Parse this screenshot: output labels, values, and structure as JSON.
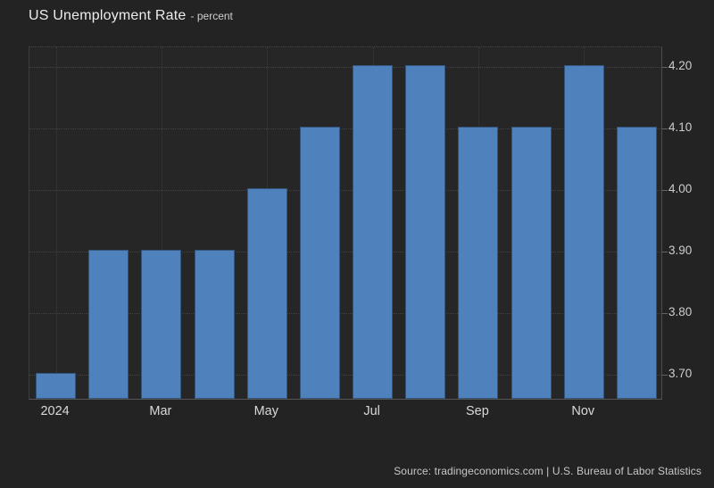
{
  "chart": {
    "title": "US Unemployment Rate",
    "subtitle": "- percent",
    "source": "Source: tradingeconomics.com | U.S. Bureau of Labor Statistics"
  },
  "chart_data": {
    "type": "bar",
    "title": "US Unemployment Rate",
    "ylabel": "percent",
    "categories": [
      "Jan 2024",
      "Feb 2024",
      "Mar 2024",
      "Apr 2024",
      "May 2024",
      "Jun 2024",
      "Jul 2024",
      "Aug 2024",
      "Sep 2024",
      "Oct 2024",
      "Nov 2024",
      "Dec 2024"
    ],
    "values": [
      3.7,
      3.9,
      3.9,
      3.9,
      4.0,
      4.1,
      4.2,
      4.2,
      4.1,
      4.1,
      4.2,
      4.1
    ],
    "x_tick_labels": [
      {
        "index": 0,
        "label": "2024"
      },
      {
        "index": 2,
        "label": "Mar"
      },
      {
        "index": 4,
        "label": "May"
      },
      {
        "index": 6,
        "label": "Jul"
      },
      {
        "index": 8,
        "label": "Sep"
      },
      {
        "index": 10,
        "label": "Nov"
      }
    ],
    "y_ticks": [
      "4.20",
      "4.10",
      "4.00",
      "3.90",
      "3.80",
      "3.70"
    ],
    "ylim": [
      3.658,
      4.232
    ],
    "grid": true,
    "legend_position": "none",
    "colors": {
      "bar": "#4f82bd",
      "background": "#232323",
      "plot_background": "#262626"
    },
    "source": "Source: tradingeconomics.com | U.S. Bureau of Labor Statistics"
  }
}
